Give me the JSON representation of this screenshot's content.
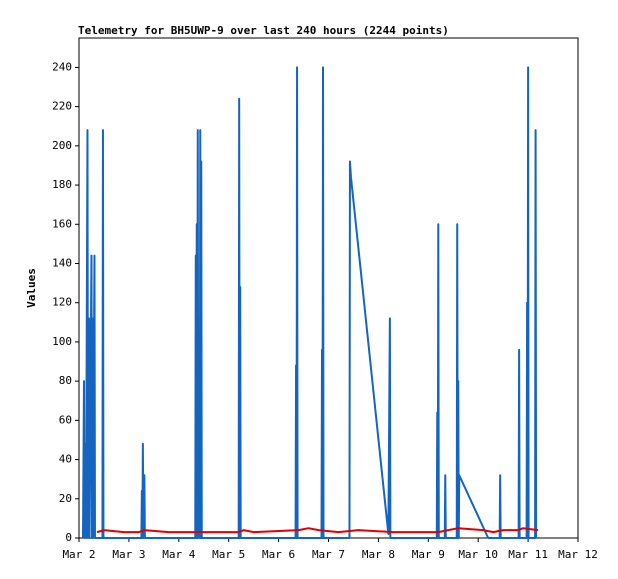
{
  "chart_data": {
    "type": "line",
    "title": "Telemetry for BH5UWP-9 over last 240 hours (2244 points)",
    "y_label": "Values",
    "xlim": [
      2,
      12
    ],
    "xticks": [
      {
        "value": 2,
        "label": "Mar 2"
      },
      {
        "value": 3,
        "label": "Mar 3"
      },
      {
        "value": 4,
        "label": "Mar 4"
      },
      {
        "value": 5,
        "label": "Mar 5"
      },
      {
        "value": 6,
        "label": "Mar 6"
      },
      {
        "value": 7,
        "label": "Mar 7"
      },
      {
        "value": 8,
        "label": "Mar 8"
      },
      {
        "value": 9,
        "label": "Mar 9"
      },
      {
        "value": 10,
        "label": "Mar 10"
      },
      {
        "value": 11,
        "label": "Mar 11"
      },
      {
        "value": 12,
        "label": "Mar 12"
      }
    ],
    "ylim": [
      0,
      255
    ],
    "yticks": [
      0,
      20,
      40,
      60,
      80,
      100,
      120,
      140,
      160,
      180,
      200,
      220,
      240
    ],
    "grid": false,
    "series": [
      {
        "color": "#1565c0",
        "x": [
          2.08,
          2.1,
          2.11,
          2.13,
          2.14,
          2.17,
          2.18,
          2.2,
          2.21,
          2.25,
          2.26,
          2.27,
          2.28,
          2.31,
          2.32,
          2.47,
          2.48,
          2.49,
          3.25,
          3.26,
          3.27,
          3.28,
          3.29,
          3.31,
          3.32,
          4.33,
          4.34,
          4.35,
          4.36,
          4.37,
          4.38,
          4.39,
          4.41,
          4.42,
          4.43,
          4.44,
          4.45,
          4.46,
          5.2,
          5.21,
          5.22,
          5.23,
          5.24,
          6.34,
          6.35,
          6.36,
          6.37,
          6.38,
          6.86,
          6.87,
          6.88,
          6.89,
          6.9,
          7.42,
          7.43,
          7.45,
          8.2,
          8.23,
          8.24,
          9.17,
          9.18,
          9.19,
          9.2,
          9.21,
          9.33,
          9.34,
          9.35,
          9.57,
          9.58,
          9.59,
          9.6,
          9.61,
          9.62,
          10.2,
          10.43,
          10.44,
          10.45,
          10.81,
          10.82,
          10.83,
          10.97,
          10.98,
          10.99,
          11.0,
          11.01,
          11.14,
          11.15,
          11.16
        ],
        "values": [
          0,
          80,
          0,
          48,
          0,
          208,
          0,
          112,
          0,
          144,
          0,
          112,
          0,
          144,
          0,
          0,
          208,
          0,
          0,
          24,
          0,
          48,
          0,
          32,
          0,
          0,
          144,
          0,
          160,
          0,
          208,
          0,
          32,
          0,
          208,
          0,
          192,
          0,
          0,
          224,
          0,
          128,
          0,
          0,
          88,
          0,
          240,
          0,
          0,
          96,
          0,
          240,
          0,
          0,
          192,
          184,
          2,
          112,
          0,
          0,
          64,
          0,
          160,
          0,
          0,
          32,
          0,
          0,
          160,
          0,
          80,
          0,
          32,
          0,
          0,
          32,
          0,
          0,
          96,
          0,
          0,
          120,
          0,
          240,
          0,
          0,
          208,
          0
        ]
      },
      {
        "color": "#e00000",
        "x": [
          2.36,
          2.5,
          2.9,
          3.2,
          3.3,
          3.8,
          4.5,
          5.2,
          5.3,
          5.5,
          6.4,
          6.6,
          6.8,
          7.2,
          7.6,
          8.3,
          9.2,
          9.4,
          9.6,
          10.1,
          10.3,
          10.5,
          10.8,
          10.9,
          11.2
        ],
        "values": [
          3,
          4,
          3,
          3,
          4,
          3,
          3,
          3,
          4,
          3,
          4,
          5,
          4,
          3,
          4,
          3,
          3,
          4,
          5,
          4,
          3,
          4,
          4,
          5,
          4
        ]
      }
    ]
  }
}
